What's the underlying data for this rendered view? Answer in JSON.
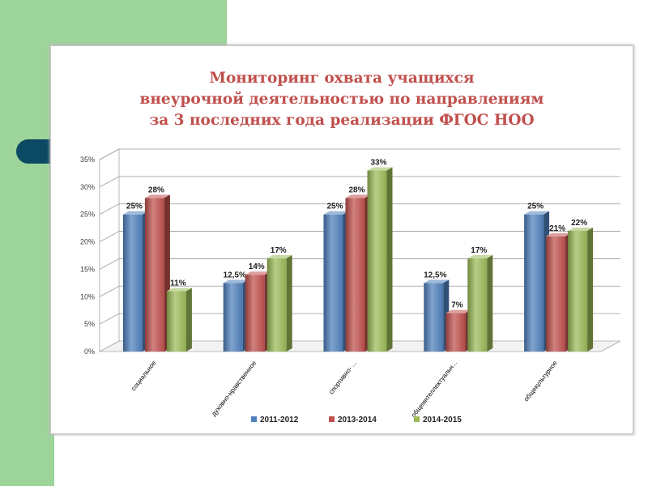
{
  "slide": {
    "title_lines": [
      "Мониторинг охвата учащихся",
      "внеурочной деятельностью по направлениям",
      "за 3 последних года реализации ФГОС НОО"
    ]
  },
  "chart_data": {
    "type": "bar",
    "title": "Мониторинг охвата учащихся внеурочной деятельностью по направлениям за 3 последних года реализации ФГОС НОО",
    "categories": [
      "социальное",
      "духовно-нравственное",
      "спортивно- ...",
      "общеинтеллектуальн...",
      "общекультурное"
    ],
    "series": [
      {
        "name": "2011-2012",
        "color": "#4f81bd",
        "values": [
          25,
          12.5,
          25,
          12.5,
          25
        ],
        "labels": [
          "25%",
          "12,5%",
          "25%",
          "12,5%",
          "25%"
        ]
      },
      {
        "name": "2013-2014",
        "color": "#c0504d",
        "values": [
          28,
          14,
          28,
          7,
          21
        ],
        "labels": [
          "28%",
          "14%",
          "28%",
          "7%",
          "21%"
        ]
      },
      {
        "name": "2014-2015",
        "color": "#9bbb59",
        "values": [
          11,
          17,
          33,
          17,
          22
        ],
        "labels": [
          "11%",
          "17%",
          "33%",
          "17%",
          "22%"
        ]
      }
    ],
    "ylim": [
      0,
      35
    ],
    "yticks": [
      "0%",
      "5%",
      "10%",
      "15%",
      "20%",
      "25%",
      "30%",
      "35%"
    ],
    "grid": true,
    "three_d": true,
    "legend_position": "bottom"
  }
}
